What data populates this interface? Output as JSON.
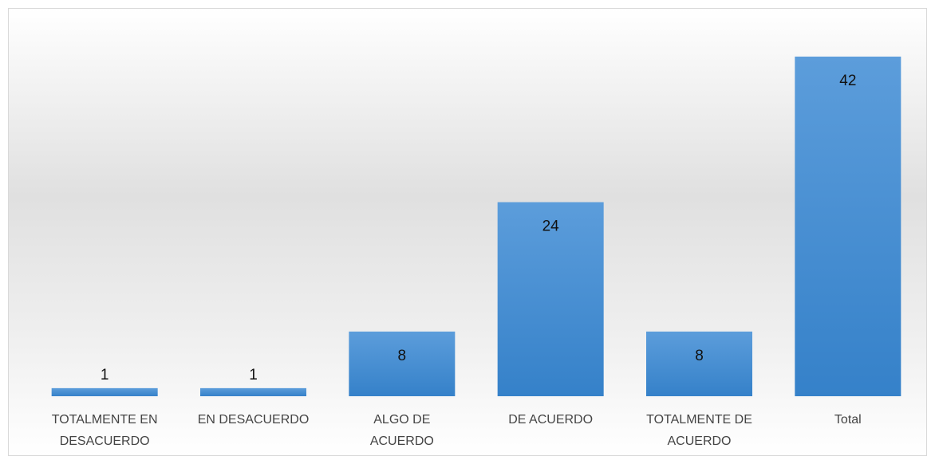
{
  "chart_data": {
    "type": "bar",
    "categories": [
      "TOTALMENTE EN DESACUERDO",
      "EN DESACUERDO",
      "ALGO DE ACUERDO",
      "DE ACUERDO",
      "TOTALMENTE DE ACUERDO",
      "Total"
    ],
    "values": [
      1,
      1,
      8,
      24,
      8,
      42
    ],
    "color": "#4a8fd3"
  }
}
